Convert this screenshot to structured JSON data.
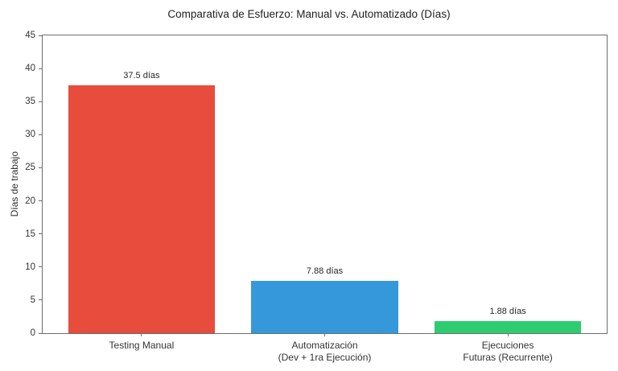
{
  "chart_data": {
    "type": "bar",
    "title": "Comparativa de Esfuerzo: Manual vs. Automatizado (Días)",
    "xlabel": "",
    "ylabel": "Días de trabajo",
    "ylim": [
      0,
      45
    ],
    "yticks": [
      0,
      5,
      10,
      15,
      20,
      25,
      30,
      35,
      40,
      45
    ],
    "grid": false,
    "legend": null,
    "categories": [
      "Testing Manual",
      "Automatización\n(Dev + 1ra Ejecución)",
      "Ejecuciones\nFuturas (Recurrente)"
    ],
    "values": [
      37.5,
      7.88,
      1.88
    ],
    "bar_value_labels": [
      "37.5 días",
      "7.88 días",
      "1.88 días"
    ],
    "bar_colors": [
      "#e74c3c",
      "#3498db",
      "#2ecc71"
    ]
  },
  "colors": {
    "spine": "#6e6e6e",
    "tick_text": "#333333",
    "title_text": "#212121",
    "background": "#ffffff"
  }
}
